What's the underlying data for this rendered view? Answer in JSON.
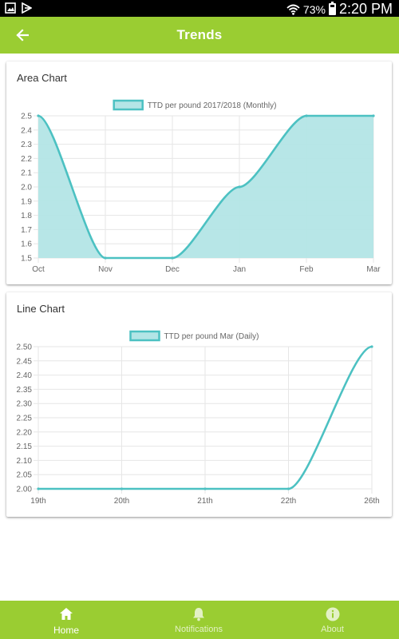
{
  "status_bar": {
    "battery": "73%",
    "battery_level": 0.73,
    "time": "2:20 PM"
  },
  "header": {
    "title": "Trends",
    "back_icon": "arrow-left-icon"
  },
  "colors": {
    "primary": "#9acd32",
    "series": "#4cc1c2",
    "series_fill": "#b3e5e6"
  },
  "cards": [
    {
      "title": "Area Chart"
    },
    {
      "title": "Line Chart"
    }
  ],
  "chart_data": [
    {
      "type": "area",
      "title": "",
      "categories": [
        "Oct",
        "Nov",
        "Dec",
        "Jan",
        "Feb",
        "Mar"
      ],
      "series": [
        {
          "name": "TTD per pound 2017/2018 (Monthly)",
          "values": [
            2.5,
            1.5,
            1.5,
            2.0,
            2.5,
            2.5
          ]
        }
      ],
      "ylim": [
        1.5,
        2.5
      ],
      "yticks": [
        "2.5",
        "2.4",
        "2.3",
        "2.2",
        "2.1",
        "2.0",
        "1.9",
        "1.8",
        "1.7",
        "1.6",
        "1.5"
      ],
      "legend": "top-center",
      "grid": true
    },
    {
      "type": "line",
      "title": "",
      "categories": [
        "19th",
        "20th",
        "21th",
        "22th",
        "26th"
      ],
      "series": [
        {
          "name": "TTD per pound Mar (Daily)",
          "values": [
            2.0,
            2.0,
            2.0,
            2.0,
            2.5
          ]
        }
      ],
      "ylim": [
        2.0,
        2.5
      ],
      "yticks": [
        "2.50",
        "2.45",
        "2.40",
        "2.35",
        "2.30",
        "2.25",
        "2.20",
        "2.15",
        "2.10",
        "2.05",
        "2.00"
      ],
      "legend": "top-center",
      "grid": true
    }
  ],
  "bottom_nav": [
    {
      "label": "Home",
      "icon": "home-icon",
      "active": true
    },
    {
      "label": "Notifications",
      "icon": "bell-icon",
      "active": false
    },
    {
      "label": "About",
      "icon": "info-icon",
      "active": false
    }
  ]
}
